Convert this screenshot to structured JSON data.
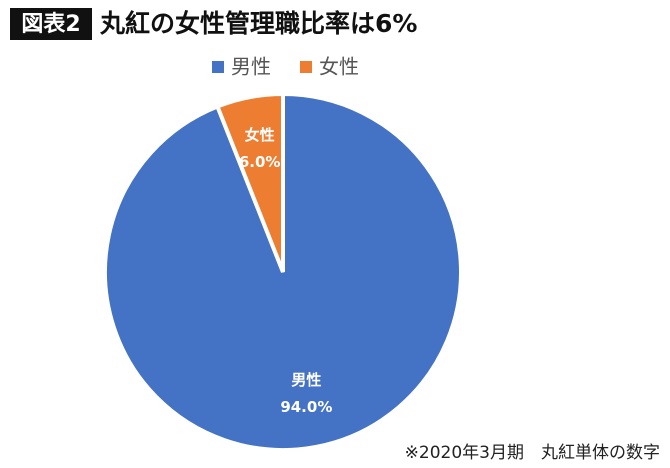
{
  "badge": "図表2",
  "chart_data": {
    "type": "pie",
    "title": "丸紅の女性管理職比率は6%",
    "categories": [
      "男性",
      "女性"
    ],
    "values": [
      94.0,
      6.0
    ],
    "value_labels": [
      "94.0%",
      "6.0%"
    ],
    "colors": [
      "#4472c4",
      "#ed7d31"
    ],
    "legend": "top"
  },
  "note": "※2020年3月期　丸紅単体の数字"
}
